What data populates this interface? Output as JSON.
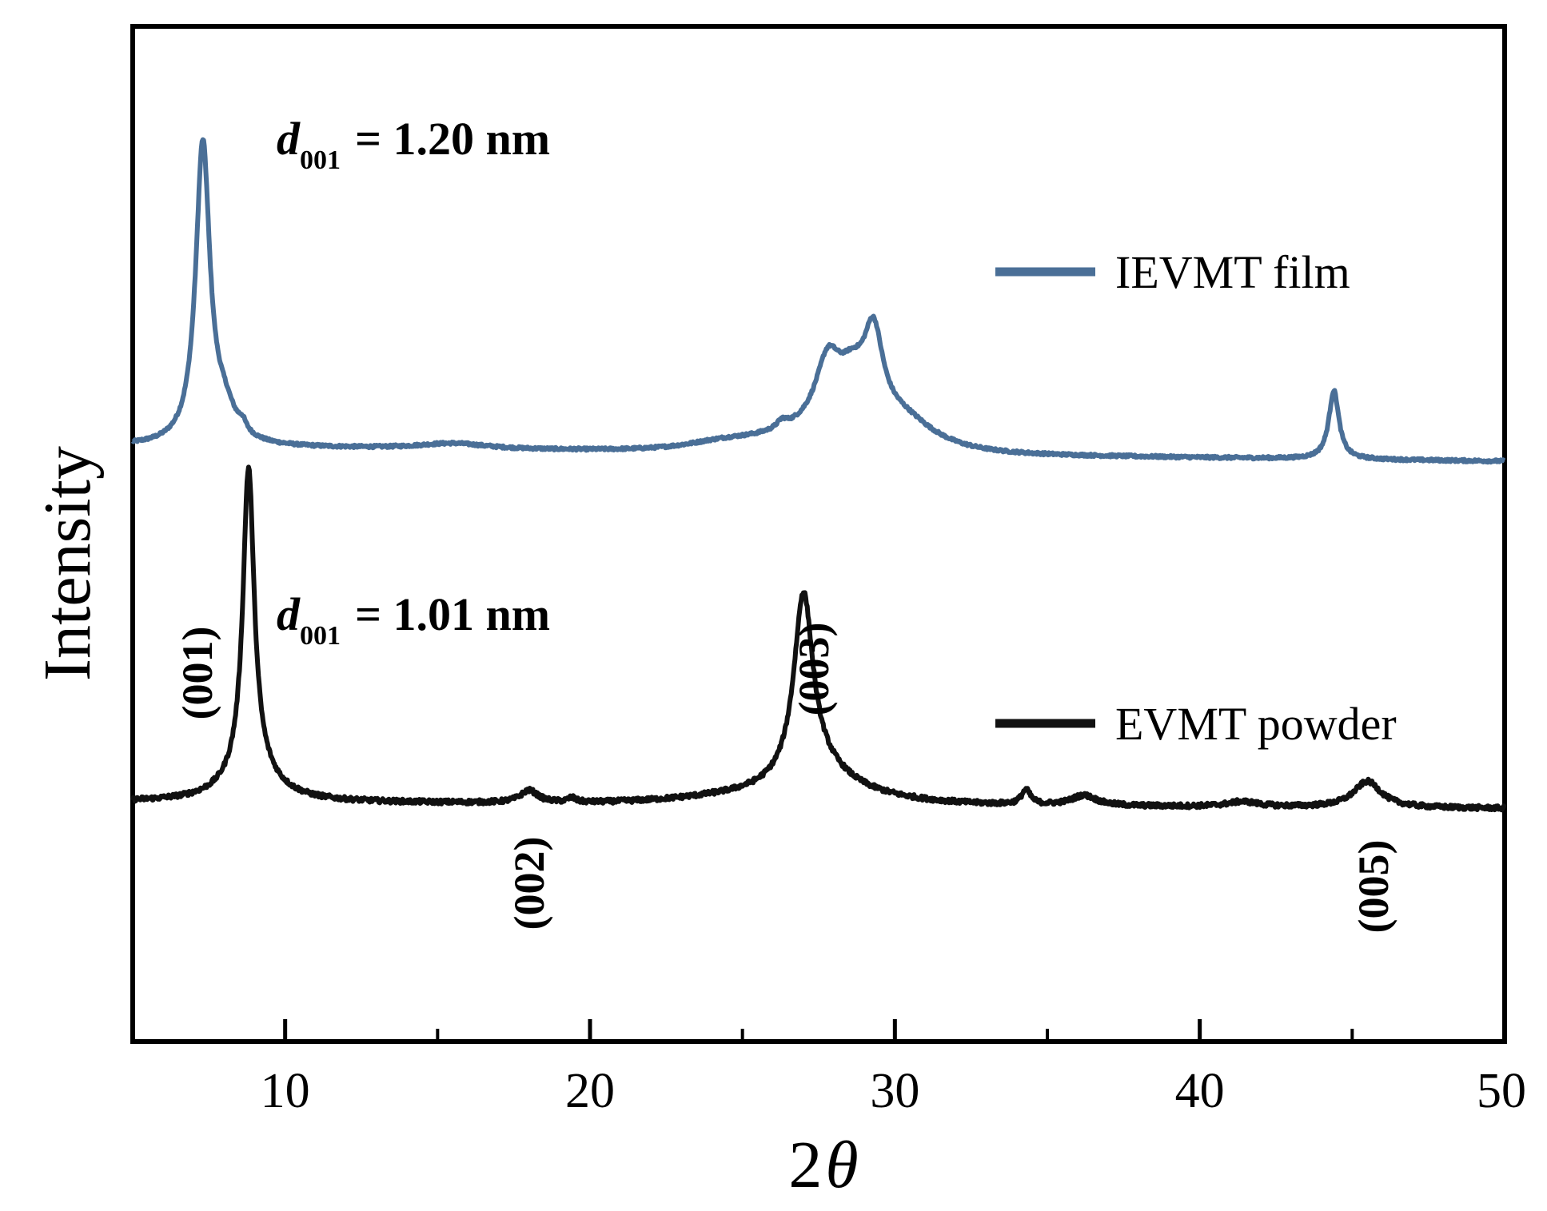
{
  "chart_data": {
    "type": "line",
    "title": "",
    "xlabel_prefix": "2",
    "xlabel_symbol": "θ",
    "ylabel": "Intensity",
    "xlim": [
      5,
      50
    ],
    "ylim": [
      0,
      100
    ],
    "x_ticks": [
      10,
      20,
      30,
      40,
      50
    ],
    "x_tick_labels": [
      "10",
      "20",
      "30",
      "40",
      "50"
    ],
    "x_minor_ticks": [
      15,
      25,
      35,
      45
    ],
    "grid": false,
    "legend_position": "right",
    "colors": {
      "film": "#4a6f97",
      "powder": "#111111",
      "axis": "#000000"
    },
    "series": [
      {
        "name": "IEVMT film",
        "baseline": 50.3,
        "peaks": [
          [
            7.3,
            41.0,
            0.28
          ],
          [
            8.0,
            4.0,
            0.45
          ],
          [
            8.6,
            1.2,
            0.15
          ],
          [
            15.5,
            0.8,
            1.4
          ],
          [
            24.3,
            1.0,
            1.6
          ],
          [
            26.3,
            1.0,
            0.2
          ],
          [
            27.8,
            8.6,
            0.5
          ],
          [
            28.6,
            6.0,
            0.6
          ],
          [
            29.3,
            11.5,
            0.38
          ],
          [
            30.3,
            3.0,
            1.2
          ],
          [
            44.4,
            9.4,
            0.2
          ]
        ],
        "broad_peaks": [
          [
            28.0,
            2.5,
            3.0
          ]
        ],
        "slope": -0.045,
        "noise": 0.18
      },
      {
        "name": "EVMT powder",
        "baseline": 1.6,
        "peaks": [
          [
            8.8,
            41.5,
            0.22
          ],
          [
            8.9,
            4.5,
            0.9
          ],
          [
            18.0,
            1.7,
            0.35
          ],
          [
            19.4,
            0.6,
            0.15
          ],
          [
            27.0,
            25.0,
            0.38
          ],
          [
            27.5,
            3.5,
            1.3
          ],
          [
            34.3,
            2.0,
            0.18
          ],
          [
            36.2,
            1.4,
            0.5
          ],
          [
            41.4,
            0.7,
            0.6
          ],
          [
            45.5,
            3.6,
            0.55
          ]
        ],
        "broad_peaks": [
          [
            26.5,
            1.2,
            4.0
          ]
        ],
        "slope": -0.02,
        "noise": 0.3
      }
    ],
    "annotations": {
      "film_spacing": {
        "var": "d",
        "sub": "001",
        "text": "= 1.20 nm"
      },
      "powder_spacing": {
        "var": "d",
        "sub": "001",
        "text": "= 1.01 nm"
      },
      "peak_labels": [
        {
          "text": "(001)",
          "x": 8.8
        },
        {
          "text": "(002)",
          "x": 18.0
        },
        {
          "text": "(003)",
          "x": 27.0
        },
        {
          "text": "(005)",
          "x": 45.5
        }
      ]
    }
  }
}
